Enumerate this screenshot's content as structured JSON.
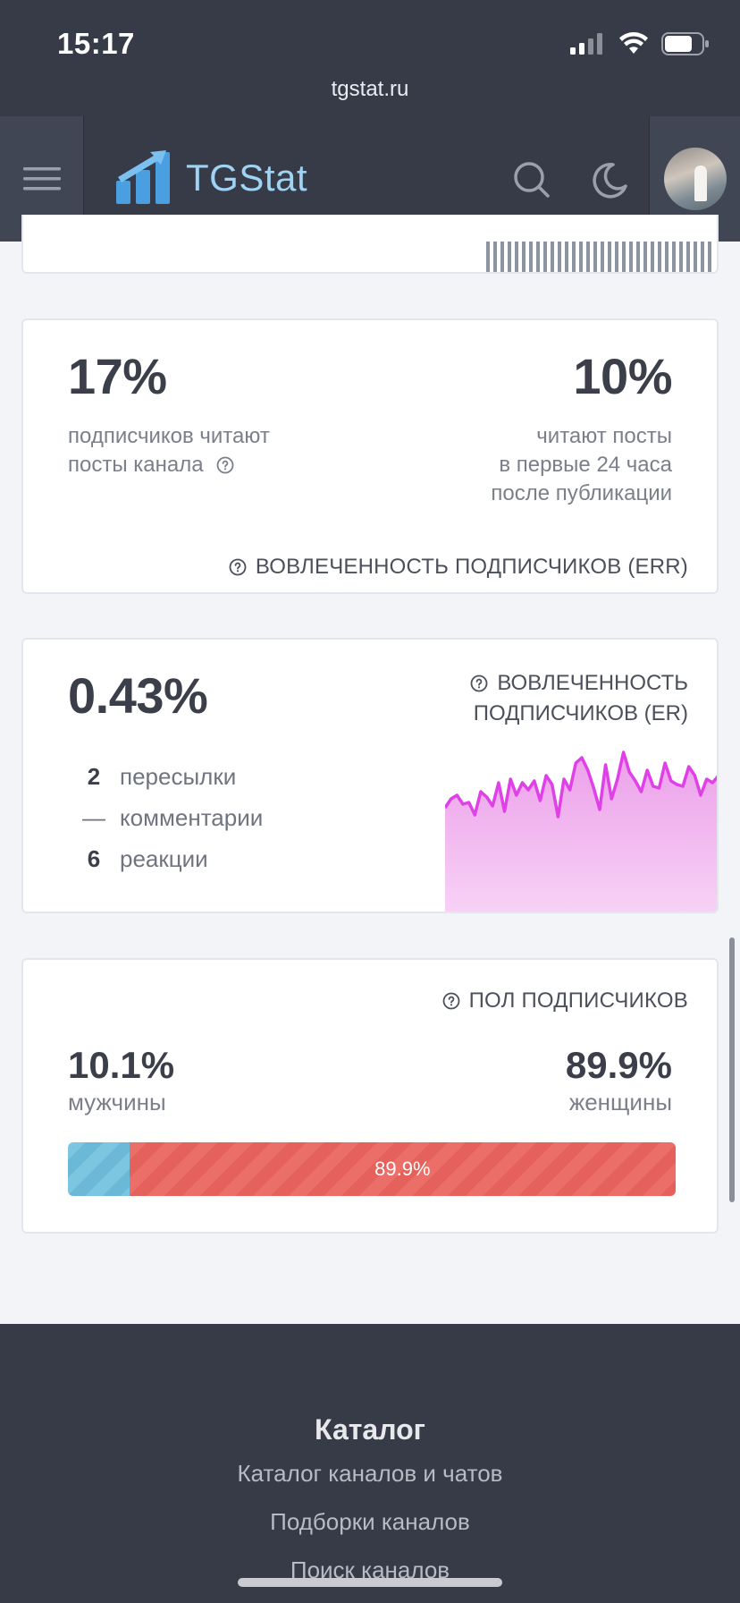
{
  "status_bar": {
    "time": "15:17",
    "url": "tgstat.ru"
  },
  "navbar": {
    "brand": "TGStat"
  },
  "err_card": {
    "left_value": "17%",
    "left_line1": "подписчиков читают",
    "left_line2": "посты канала",
    "right_value": "10%",
    "right_line1": "читают посты",
    "right_line2": "в первые 24 часа",
    "right_line3": "после публикации",
    "caption": "ВОВЛЕЧЕННОСТЬ ПОДПИСЧИКОВ (ERR)"
  },
  "er_card": {
    "value": "0.43%",
    "caption_line1": "ВОВЛЕЧЕННОСТЬ",
    "caption_line2": "ПОДПИСЧИКОВ (ER)",
    "stats": [
      {
        "num": "2",
        "label": "пересылки"
      },
      {
        "num": "—",
        "label": "комментарии"
      },
      {
        "num": "6",
        "label": "реакции"
      }
    ],
    "sparkline": [
      0.3,
      0.4,
      0.44,
      0.34,
      0.36,
      0.22,
      0.48,
      0.42,
      0.32,
      0.58,
      0.26,
      0.62,
      0.44,
      0.58,
      0.5,
      0.6,
      0.38,
      0.66,
      0.56,
      0.2,
      0.62,
      0.5,
      0.8,
      0.86,
      0.72,
      0.52,
      0.28,
      0.78,
      0.4,
      0.62,
      0.92,
      0.7,
      0.6,
      0.48,
      0.72,
      0.54,
      0.52,
      0.8,
      0.6,
      0.56,
      0.54,
      0.76,
      0.66,
      0.44,
      0.62,
      0.58,
      0.66
    ],
    "line_color": "#e040e8",
    "fill_color": "#f4b8f0"
  },
  "gender_card": {
    "caption": "ПОЛ ПОДПИСЧИКОВ",
    "male_value": "10.1%",
    "male_label": "мужчины",
    "female_value": "89.9%",
    "female_label": "женщины",
    "bar_label": "89.9%",
    "male_share": 10.1,
    "female_share": 89.9,
    "male_color": "#7cc6e1",
    "female_color": "#ec6e68"
  },
  "footer": {
    "title": "Каталог",
    "links": [
      "Каталог каналов и чатов",
      "Подборки каналов",
      "Поиск каналов"
    ]
  }
}
